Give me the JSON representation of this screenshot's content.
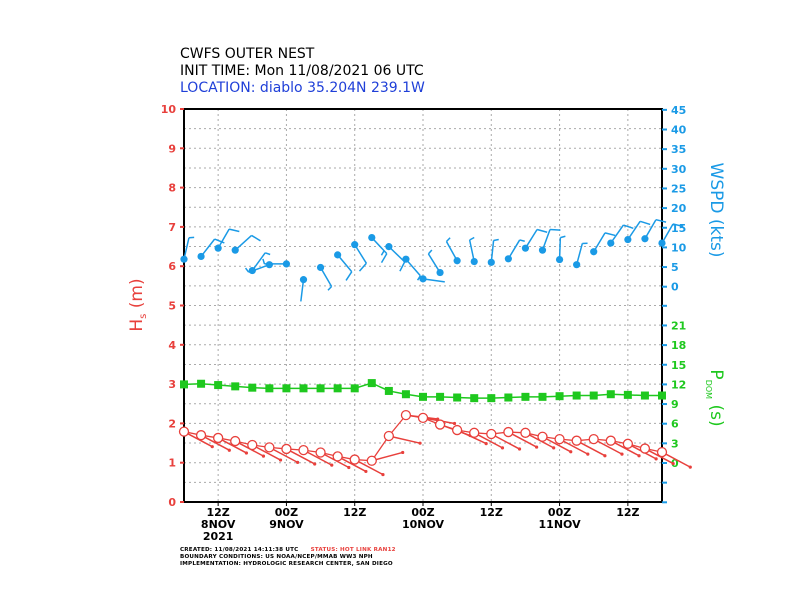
{
  "header": {
    "line1": "CWFS OUTER NEST",
    "line2": "INIT TIME: Mon 11/08/2021 06 UTC",
    "line3": "LOCATION: diablo 35.204N 239.1W"
  },
  "footer": {
    "created": "CREATED: 11/08/2021 14:11:38 UTC",
    "status": "STATUS: HOT LINK RAN12",
    "boundary": "BOUNDARY CONDITIONS: US NOAA/NCEP/MMAB WW3 NPH",
    "implementation": "IMPLEMENTATION: HYDROLOGIC RESEARCH CENTER, SAN DIEGO"
  },
  "colors": {
    "hs": "#e8403c",
    "wspd": "#1a9ae6",
    "tp": "#1ec81e",
    "location": "#1f3fd8",
    "status": "#e8403c"
  },
  "chart_data": {
    "type": "line",
    "grid": true,
    "times": [
      "11/08 06Z",
      "11/08 09Z",
      "11/08 12Z",
      "11/08 15Z",
      "11/08 18Z",
      "11/08 21Z",
      "11/09 00Z",
      "11/09 03Z",
      "11/09 06Z",
      "11/09 09Z",
      "11/09 12Z",
      "11/09 15Z",
      "11/09 18Z",
      "11/09 21Z",
      "11/10 00Z",
      "11/10 03Z",
      "11/10 06Z",
      "11/10 09Z",
      "11/10 12Z",
      "11/10 15Z",
      "11/10 18Z",
      "11/10 21Z",
      "11/11 00Z",
      "11/11 03Z",
      "11/11 06Z",
      "11/11 09Z",
      "11/11 12Z",
      "11/11 15Z",
      "11/11 18Z"
    ],
    "x_ticks": [
      {
        "time": "11/08 12Z",
        "l1": "12Z",
        "l2": "8NOV",
        "l3": "2021"
      },
      {
        "time": "11/09 00Z",
        "l1": "00Z",
        "l2": "9NOV",
        "l3": ""
      },
      {
        "time": "11/09 12Z",
        "l1": "12Z",
        "l2": "",
        "l3": ""
      },
      {
        "time": "11/10 00Z",
        "l1": "00Z",
        "l2": "10NOV",
        "l3": ""
      },
      {
        "time": "11/10 12Z",
        "l1": "12Z",
        "l2": "",
        "l3": ""
      },
      {
        "time": "11/11 00Z",
        "l1": "00Z",
        "l2": "11NOV",
        "l3": ""
      },
      {
        "time": "11/11 12Z",
        "l1": "12Z",
        "l2": "",
        "l3": ""
      }
    ],
    "axes": {
      "hs": {
        "label_main": "H",
        "label_sub": "s",
        "label_unit": "(m)",
        "range": [
          0,
          10
        ],
        "ticks": [
          "0",
          "1",
          "2",
          "3",
          "4",
          "5",
          "6",
          "7",
          "8",
          "9",
          "10"
        ]
      },
      "wspd": {
        "label": "WSPD (kts)",
        "range_shown": [
          0,
          45
        ],
        "ticks": [
          "0",
          "5",
          "10",
          "15",
          "20",
          "25",
          "30",
          "35",
          "40",
          "45"
        ]
      },
      "tp": {
        "label_main": "P",
        "label_sub": "DOM",
        "label_unit": "(s)",
        "ticks": [
          "0",
          "3",
          "6",
          "9",
          "12",
          "15",
          "18",
          "21"
        ]
      }
    },
    "series": [
      {
        "key": "hs",
        "unit": "m",
        "marker": "open-circle-with-direction-arrow",
        "values": [
          1.79,
          1.7,
          1.63,
          1.55,
          1.45,
          1.39,
          1.35,
          1.32,
          1.26,
          1.16,
          1.08,
          1.05,
          1.68,
          2.21,
          2.14,
          1.97,
          1.83,
          1.76,
          1.73,
          1.78,
          1.76,
          1.66,
          1.6,
          1.56,
          1.6,
          1.56,
          1.48,
          1.36,
          1.27
        ],
        "direction_from_deg": [
          298,
          298,
          298,
          298,
          298,
          298,
          298,
          298,
          298,
          298,
          298,
          255,
          283,
          277,
          280,
          290,
          295,
          298,
          298,
          298,
          298,
          298,
          298,
          298,
          298,
          298,
          298,
          298,
          298
        ]
      },
      {
        "key": "wspd",
        "unit": "kts",
        "marker": "wind-barb",
        "values": [
          7.0,
          7.7,
          9.8,
          9.3,
          4.1,
          5.6,
          5.8,
          1.8,
          4.9,
          8.1,
          10.7,
          12.5,
          10.2,
          7.0,
          2.0,
          3.6,
          6.6,
          6.4,
          6.2,
          7.1,
          9.8,
          9.3,
          6.9,
          5.6,
          8.9,
          11.1,
          12.0,
          12.2,
          11.1
        ],
        "direction_from_deg": [
          13,
          38,
          30,
          48,
          36,
          250,
          270,
          187,
          150,
          140,
          148,
          137,
          134,
          139,
          98,
          328,
          331,
          348,
          6,
          31,
          32,
          20,
          2,
          15,
          31,
          35,
          34,
          30,
          30
        ]
      },
      {
        "key": "tp",
        "unit": "s",
        "marker": "filled-square",
        "values": [
          12.0,
          12.1,
          11.9,
          11.7,
          11.5,
          11.4,
          11.4,
          11.4,
          11.4,
          11.4,
          11.4,
          12.2,
          11.0,
          10.5,
          10.1,
          10.1,
          10.0,
          9.9,
          9.9,
          10.0,
          10.1,
          10.1,
          10.2,
          10.3,
          10.3,
          10.5,
          10.4,
          10.3,
          10.3
        ]
      }
    ]
  }
}
